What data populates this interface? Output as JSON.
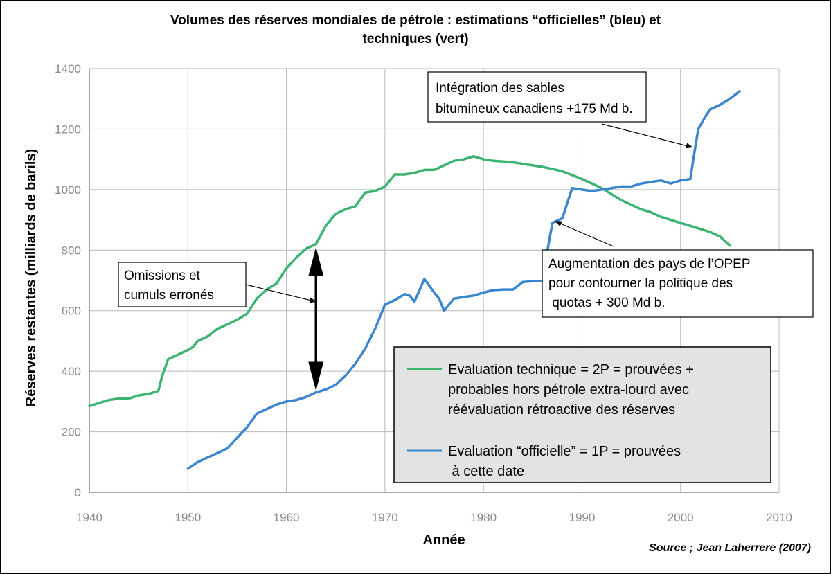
{
  "chart_data": {
    "type": "line",
    "title_lines": [
      "Volumes des réserves mondiales de pétrole : estimations “officielles” (bleu) et",
      "techniques (vert)"
    ],
    "xlabel": "Année",
    "ylabel": "Réserves restantes (milliards de barils)",
    "xlim": [
      1940,
      2010
    ],
    "ylim": [
      0,
      1400
    ],
    "x_ticks": [
      1940,
      1950,
      1960,
      1970,
      1980,
      1990,
      2000,
      2010
    ],
    "y_ticks": [
      0,
      200,
      400,
      600,
      800,
      1000,
      1200,
      1400
    ],
    "grid": true,
    "source": "Source ; Jean Laherrere (2007)",
    "series": [
      {
        "color": "#3cb371",
        "points": [
          [
            1940,
            285
          ],
          [
            1941,
            295
          ],
          [
            1942,
            305
          ],
          [
            1943,
            310
          ],
          [
            1944,
            310
          ],
          [
            1945,
            320
          ],
          [
            1946,
            325
          ],
          [
            1947,
            335
          ],
          [
            1947.4,
            385
          ],
          [
            1948,
            440
          ],
          [
            1949,
            455
          ],
          [
            1950,
            470
          ],
          [
            1950.5,
            480
          ],
          [
            1951,
            500
          ],
          [
            1952,
            515
          ],
          [
            1953,
            540
          ],
          [
            1954,
            555
          ],
          [
            1955,
            570
          ],
          [
            1956,
            590
          ],
          [
            1957,
            640
          ],
          [
            1958,
            670
          ],
          [
            1959,
            690
          ],
          [
            1960,
            740
          ],
          [
            1961,
            775
          ],
          [
            1962,
            805
          ],
          [
            1963,
            820
          ],
          [
            1964,
            880
          ],
          [
            1965,
            920
          ],
          [
            1966,
            935
          ],
          [
            1967,
            945
          ],
          [
            1968,
            990
          ],
          [
            1969,
            995
          ],
          [
            1970,
            1010
          ],
          [
            1971,
            1050
          ],
          [
            1972,
            1050
          ],
          [
            1973,
            1055
          ],
          [
            1974,
            1065
          ],
          [
            1975,
            1065
          ],
          [
            1976,
            1080
          ],
          [
            1977,
            1095
          ],
          [
            1978,
            1100
          ],
          [
            1979,
            1110
          ],
          [
            1980,
            1100
          ],
          [
            1981,
            1095
          ],
          [
            1982,
            1093
          ],
          [
            1983,
            1090
          ],
          [
            1984,
            1085
          ],
          [
            1985,
            1080
          ],
          [
            1986,
            1075
          ],
          [
            1987,
            1068
          ],
          [
            1988,
            1060
          ],
          [
            1989,
            1048
          ],
          [
            1990,
            1035
          ],
          [
            1991,
            1020
          ],
          [
            1992,
            1005
          ],
          [
            1993,
            985
          ],
          [
            1994,
            965
          ],
          [
            1995,
            950
          ],
          [
            1996,
            935
          ],
          [
            1997,
            925
          ],
          [
            1998,
            910
          ],
          [
            1999,
            900
          ],
          [
            2000,
            890
          ],
          [
            2001,
            880
          ],
          [
            2002,
            870
          ],
          [
            2003,
            860
          ],
          [
            2004,
            845
          ],
          [
            2005,
            815
          ]
        ]
      },
      {
        "color": "#3a85cf",
        "points": [
          [
            1950,
            78
          ],
          [
            1951,
            100
          ],
          [
            1952,
            115
          ],
          [
            1953,
            130
          ],
          [
            1954,
            145
          ],
          [
            1955,
            180
          ],
          [
            1956,
            215
          ],
          [
            1957,
            260
          ],
          [
            1958,
            275
          ],
          [
            1959,
            290
          ],
          [
            1960,
            300
          ],
          [
            1961,
            305
          ],
          [
            1962,
            315
          ],
          [
            1963,
            330
          ],
          [
            1964,
            340
          ],
          [
            1965,
            355
          ],
          [
            1966,
            385
          ],
          [
            1967,
            425
          ],
          [
            1968,
            475
          ],
          [
            1969,
            540
          ],
          [
            1970,
            620
          ],
          [
            1971,
            635
          ],
          [
            1972,
            655
          ],
          [
            1972.5,
            650
          ],
          [
            1973,
            630
          ],
          [
            1974,
            705
          ],
          [
            1975,
            660
          ],
          [
            1975.5,
            640
          ],
          [
            1976,
            600
          ],
          [
            1977,
            640
          ],
          [
            1978,
            645
          ],
          [
            1979,
            650
          ],
          [
            1980,
            660
          ],
          [
            1981,
            668
          ],
          [
            1982,
            670
          ],
          [
            1983,
            670
          ],
          [
            1984,
            695
          ],
          [
            1985,
            697
          ],
          [
            1986,
            697
          ],
          [
            1986.5,
            800
          ],
          [
            1987,
            890
          ],
          [
            1988,
            905
          ],
          [
            1989,
            1005
          ],
          [
            1990,
            1000
          ],
          [
            1991,
            995
          ],
          [
            1992,
            1000
          ],
          [
            1993,
            1005
          ],
          [
            1994,
            1010
          ],
          [
            1995,
            1010
          ],
          [
            1996,
            1020
          ],
          [
            1997,
            1025
          ],
          [
            1998,
            1030
          ],
          [
            1999,
            1020
          ],
          [
            2000,
            1030
          ],
          [
            2001,
            1035
          ],
          [
            2001.3,
            1100
          ],
          [
            2001.8,
            1200
          ],
          [
            2002.5,
            1240
          ],
          [
            2003,
            1265
          ],
          [
            2004,
            1280
          ],
          [
            2005,
            1300
          ],
          [
            2006,
            1325
          ]
        ]
      }
    ],
    "legend": {
      "entries": [
        {
          "color": "#3cb371",
          "lines": [
            "Evaluation technique = 2P = prouvées +",
            "probables hors pétrole extra-lourd avec",
            "réévaluation rétroactive des réserves"
          ]
        },
        {
          "color": "#3a85cf",
          "lines": [
            "Evaluation “officielle” = 1P = prouvées",
            " à cette date"
          ]
        }
      ]
    },
    "annotations": [
      {
        "id": "sables",
        "lines": [
          "Intégration des sables",
          "bitumineux canadiens +175 Md b."
        ],
        "target": [
          2001.2,
          1140
        ]
      },
      {
        "id": "opep",
        "lines": [
          "Augmentation des pays de l’OPEP",
          "pour contourner la politique des",
          " quotas + 300 Md b."
        ],
        "target": [
          1987.3,
          895
        ]
      },
      {
        "id": "omissions",
        "lines": [
          "Omissions et",
          "cumuls erronés"
        ],
        "target": [
          1963.0,
          630
        ]
      }
    ],
    "double_arrow": {
      "x": 1963,
      "y_top": 810,
      "y_bottom": 335
    }
  }
}
